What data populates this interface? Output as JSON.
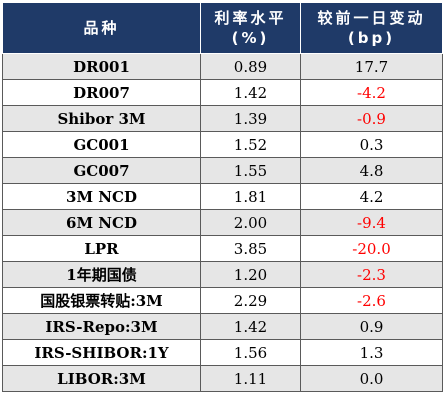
{
  "header": {
    "col1": "品种",
    "col2_line1": "利率水平",
    "col2_line2": "(%)",
    "col3_line1": "较前一日变动",
    "col3_line2": "(bp)"
  },
  "rows": [
    {
      "name": "DR001",
      "rate": "0.89",
      "change": "17.7",
      "negative": false
    },
    {
      "name": "DR007",
      "rate": "1.42",
      "change": "-4.2",
      "negative": true
    },
    {
      "name": "Shibor 3M",
      "rate": "1.39",
      "change": "-0.9",
      "negative": true
    },
    {
      "name": "GC001",
      "rate": "1.52",
      "change": "0.3",
      "negative": false
    },
    {
      "name": "GC007",
      "rate": "1.55",
      "change": "4.8",
      "negative": false
    },
    {
      "name": "3M NCD",
      "rate": "1.81",
      "change": "4.2",
      "negative": false
    },
    {
      "name": "6M NCD",
      "rate": "2.00",
      "change": "-9.4",
      "negative": true
    },
    {
      "name": "LPR",
      "rate": "3.85",
      "change": "-20.0",
      "negative": true
    },
    {
      "name": "1年期国债",
      "rate": "1.20",
      "change": "-2.3",
      "negative": true
    },
    {
      "name": "国股银票转贴:3M",
      "rate": "2.29",
      "change": "-2.6",
      "negative": true
    },
    {
      "name": "IRS-Repo:3M",
      "rate": "1.42",
      "change": "0.9",
      "negative": false
    },
    {
      "name": "IRS-SHIBOR:1Y",
      "rate": "1.56",
      "change": "1.3",
      "negative": false
    },
    {
      "name": "LIBOR:3M",
      "rate": "1.11",
      "change": "0.0",
      "negative": false
    }
  ],
  "colors": {
    "header_bg": "#1f3a68",
    "stripe_bg": "#e6e6e6",
    "negative": "#ff0000"
  }
}
